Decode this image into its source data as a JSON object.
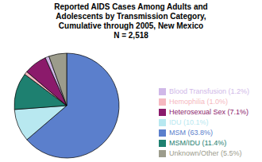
{
  "chart_data": {
    "type": "pie",
    "title": "Reported AIDS Cases Among Adults and\nAdolescents by Transmission Category,\nCumulative through 2005, New Mexico\nN = 2,518",
    "categories": [
      "MSM (63.8%)",
      "IDU (10.1%)",
      "MSM/IDU (11.4%)",
      "Hemophilia (1.0%)",
      "Heterosexual Sex (7.1%)",
      "Blood Transfusion (1.2%)",
      "Unknown/Other (5.5%)"
    ],
    "values": [
      63.8,
      10.1,
      11.4,
      1.0,
      7.1,
      1.2,
      5.5
    ],
    "colors": [
      "#5b7fcc",
      "#b8e8f0",
      "#1e8070",
      "#f5b8c0",
      "#8b1a6b",
      "#d0b8e8",
      "#9c9c8c"
    ],
    "legend": "lower right"
  }
}
